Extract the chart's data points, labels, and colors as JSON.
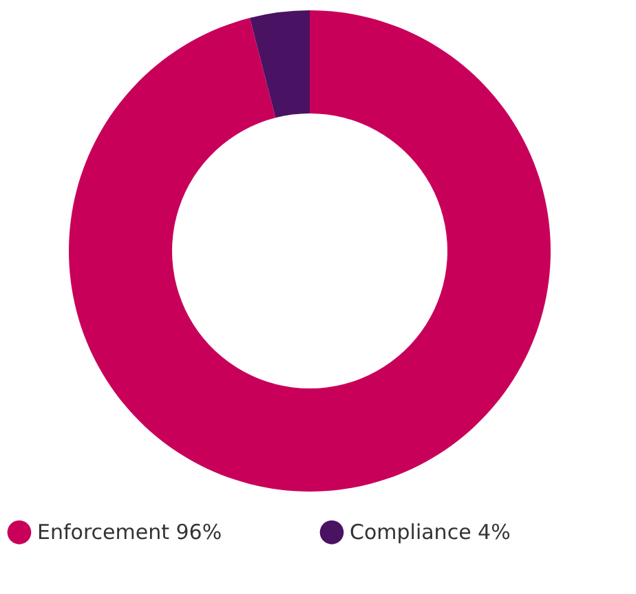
{
  "chart_data": {
    "type": "donut",
    "categories": [
      "Enforcement 96%",
      "Compliance 4%"
    ],
    "values": [
      96,
      4
    ],
    "colors": [
      "#c8005a",
      "#4a1262"
    ],
    "legend": "bottom"
  }
}
